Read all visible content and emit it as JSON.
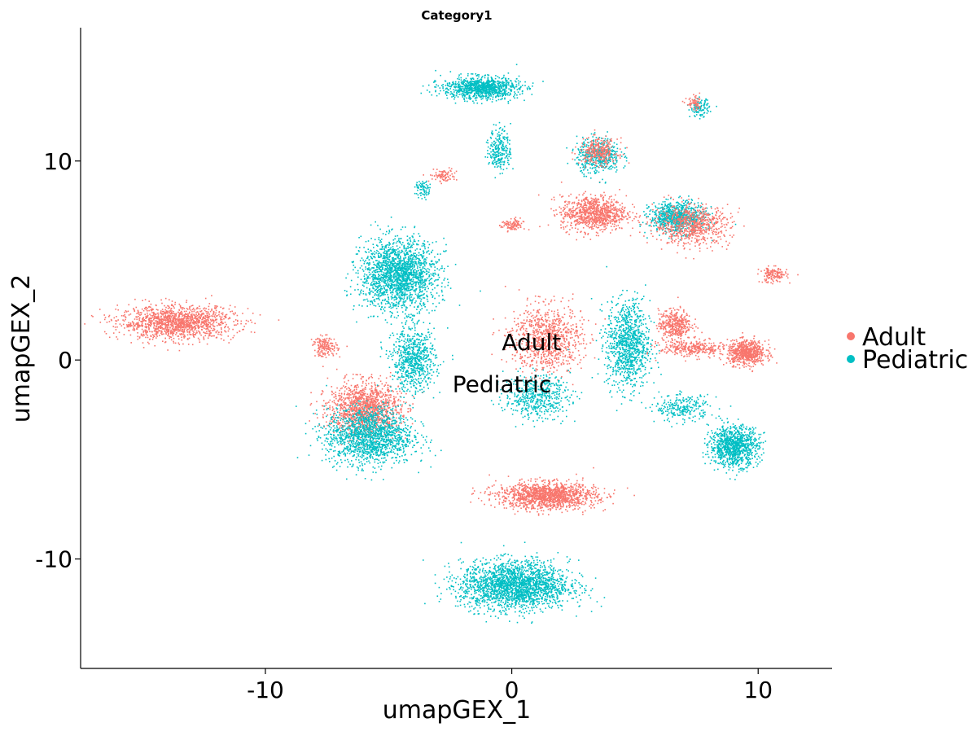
{
  "chart_data": {
    "type": "scatter",
    "title": "Category1",
    "xlabel": "umapGEX_1",
    "ylabel": "umapGEX_2",
    "xlim": [
      -17.5,
      13
    ],
    "ylim": [
      -15.5,
      16.7
    ],
    "x_ticks": [
      -10,
      0,
      10
    ],
    "x_tick_labels": [
      "-10",
      "0",
      "10"
    ],
    "y_ticks": [
      -10,
      0,
      10
    ],
    "y_tick_labels": [
      "-10",
      "0",
      "10"
    ],
    "grid": false,
    "legend_position": "right",
    "series": [
      {
        "name": "Adult",
        "color": "#F8766D"
      },
      {
        "name": "Pediatric",
        "color": "#00BFC4"
      }
    ],
    "annotations": [
      {
        "text": "Adult",
        "x": 0.8,
        "y": 0.9
      },
      {
        "text": "Pediatric",
        "x": -0.4,
        "y": -1.2
      }
    ],
    "clusters": [
      {
        "series": "Adult",
        "x": -13.6,
        "y": 1.9,
        "sx": 2.1,
        "sy": 0.75,
        "n": 1400
      },
      {
        "series": "Adult",
        "x": -7.6,
        "y": 0.7,
        "sx": 0.45,
        "sy": 0.45,
        "n": 160
      },
      {
        "series": "Adult",
        "x": -6.0,
        "y": -2.4,
        "sx": 1.3,
        "sy": 1.2,
        "n": 1300
      },
      {
        "series": "Pediatric",
        "x": -5.8,
        "y": -3.8,
        "sx": 1.6,
        "sy": 1.3,
        "n": 1500
      },
      {
        "series": "Pediatric",
        "x": -4.6,
        "y": 4.3,
        "sx": 1.4,
        "sy": 1.6,
        "n": 1900
      },
      {
        "series": "Pediatric",
        "x": -4.0,
        "y": 0.0,
        "sx": 0.8,
        "sy": 1.4,
        "n": 700
      },
      {
        "series": "Pediatric",
        "x": -1.3,
        "y": 13.7,
        "sx": 1.4,
        "sy": 0.5,
        "n": 1000
      },
      {
        "series": "Pediatric",
        "x": -0.5,
        "y": 10.6,
        "sx": 0.4,
        "sy": 1.0,
        "n": 250
      },
      {
        "series": "Adult",
        "x": -2.8,
        "y": 9.3,
        "sx": 0.5,
        "sy": 0.3,
        "n": 90
      },
      {
        "series": "Pediatric",
        "x": -3.6,
        "y": 8.6,
        "sx": 0.3,
        "sy": 0.4,
        "n": 70
      },
      {
        "series": "Adult",
        "x": 0.0,
        "y": 6.8,
        "sx": 0.4,
        "sy": 0.3,
        "n": 100
      },
      {
        "series": "Adult",
        "x": 3.3,
        "y": 7.4,
        "sx": 1.2,
        "sy": 0.8,
        "n": 900
      },
      {
        "series": "Pediatric",
        "x": 3.5,
        "y": 10.3,
        "sx": 0.8,
        "sy": 0.8,
        "n": 450
      },
      {
        "series": "Adult",
        "x": 3.5,
        "y": 10.5,
        "sx": 0.7,
        "sy": 0.6,
        "n": 300
      },
      {
        "series": "Pediatric",
        "x": 6.7,
        "y": 7.2,
        "sx": 1.0,
        "sy": 0.7,
        "n": 800
      },
      {
        "series": "Adult",
        "x": 7.3,
        "y": 6.8,
        "sx": 1.4,
        "sy": 0.9,
        "n": 700
      },
      {
        "series": "Pediatric",
        "x": 7.6,
        "y": 12.7,
        "sx": 0.35,
        "sy": 0.4,
        "n": 110
      },
      {
        "series": "Adult",
        "x": 7.4,
        "y": 12.9,
        "sx": 0.3,
        "sy": 0.3,
        "n": 60
      },
      {
        "series": "Adult",
        "x": 10.6,
        "y": 4.3,
        "sx": 0.5,
        "sy": 0.35,
        "n": 150
      },
      {
        "series": "Adult",
        "x": 1.4,
        "y": 1.1,
        "sx": 1.3,
        "sy": 1.5,
        "n": 900
      },
      {
        "series": "Pediatric",
        "x": 1.0,
        "y": -1.8,
        "sx": 1.2,
        "sy": 1.0,
        "n": 500
      },
      {
        "series": "Pediatric",
        "x": 4.7,
        "y": 0.8,
        "sx": 0.8,
        "sy": 2.0,
        "n": 1000
      },
      {
        "series": "Adult",
        "x": 6.6,
        "y": 1.8,
        "sx": 0.6,
        "sy": 0.7,
        "n": 400
      },
      {
        "series": "Adult",
        "x": 9.5,
        "y": 0.4,
        "sx": 0.7,
        "sy": 0.55,
        "n": 650
      },
      {
        "series": "Adult",
        "x": 7.3,
        "y": 0.6,
        "sx": 1.2,
        "sy": 0.4,
        "n": 300
      },
      {
        "series": "Pediatric",
        "x": 9.0,
        "y": -4.3,
        "sx": 0.9,
        "sy": 0.9,
        "n": 1000
      },
      {
        "series": "Pediatric",
        "x": 6.9,
        "y": -2.4,
        "sx": 1.0,
        "sy": 0.6,
        "n": 250
      },
      {
        "series": "Adult",
        "x": 1.4,
        "y": -6.8,
        "sx": 1.8,
        "sy": 0.6,
        "n": 1400
      },
      {
        "series": "Pediatric",
        "x": 0.1,
        "y": -11.3,
        "sx": 2.0,
        "sy": 1.1,
        "n": 2200
      }
    ]
  }
}
